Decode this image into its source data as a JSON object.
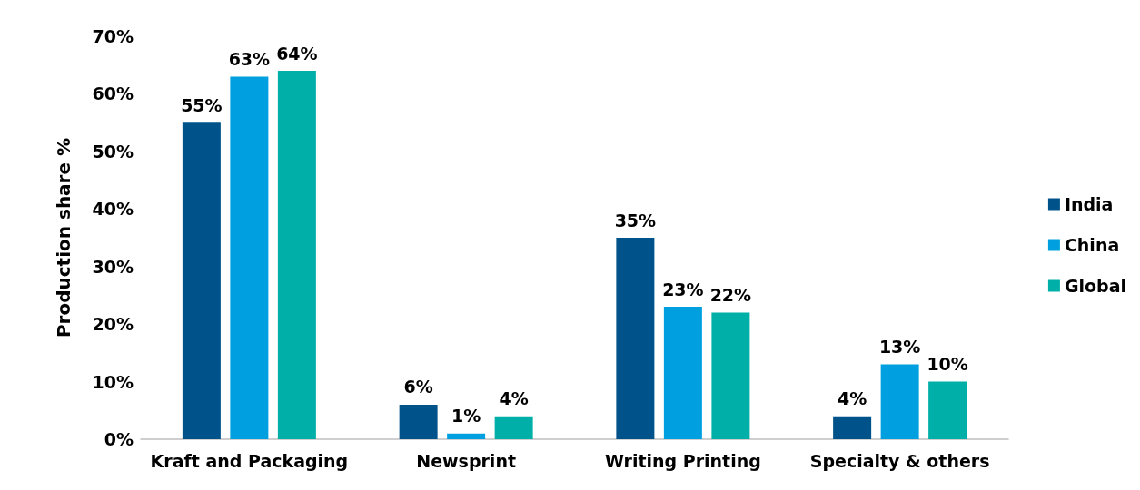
{
  "chart_data": {
    "type": "bar",
    "ylabel": "Production share %",
    "categories": [
      "Kraft and Packaging",
      "Newsprint",
      "Writing Printing",
      "Specialty & others"
    ],
    "series": [
      {
        "name": "India",
        "color": "#00538a",
        "values": [
          55,
          6,
          35,
          4
        ],
        "value_labels": [
          "55%",
          "6%",
          "35%",
          "4%"
        ]
      },
      {
        "name": "China",
        "color": "#00a0e0",
        "values": [
          63,
          1,
          23,
          13
        ],
        "value_labels": [
          "63%",
          "1%",
          "23%",
          "13%"
        ]
      },
      {
        "name": "Global",
        "color": "#00b0a8",
        "values": [
          64,
          4,
          22,
          10
        ],
        "value_labels": [
          "64%",
          "4%",
          "22%",
          "10%"
        ]
      }
    ],
    "ylim": [
      0,
      70
    ],
    "yticks": [
      {
        "value": 0,
        "label": "0%"
      },
      {
        "value": 10,
        "label": "10%"
      },
      {
        "value": 20,
        "label": "20%"
      },
      {
        "value": 30,
        "label": "30%"
      },
      {
        "value": 40,
        "label": "40%"
      },
      {
        "value": 50,
        "label": "50%"
      },
      {
        "value": 60,
        "label": "60%"
      },
      {
        "value": 70,
        "label": "70%"
      }
    ],
    "grid": false,
    "legend": "right"
  }
}
